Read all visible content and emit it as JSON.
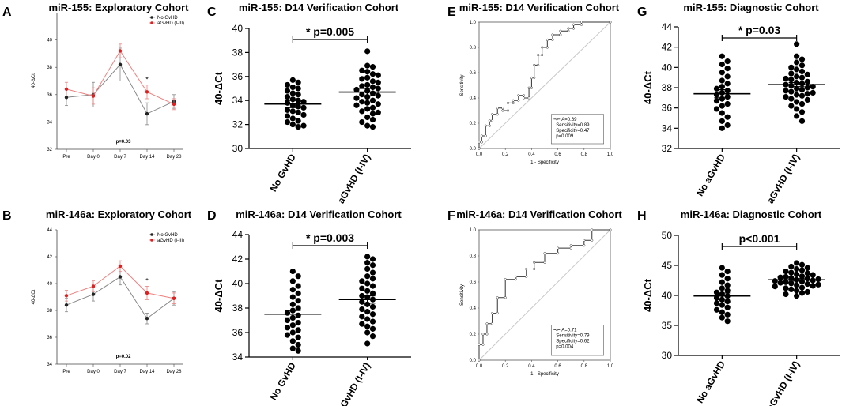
{
  "colors": {
    "black": "#222222",
    "red": "#e02020",
    "gray": "#999999",
    "diag": "#c8c8c8"
  },
  "chart_data": [
    {
      "panel": "A",
      "type": "line",
      "title": "miR-155: Exploratory Cohort",
      "ylabel": "40-ΔCt",
      "ylim": [
        32,
        42
      ],
      "yticks": [
        32,
        34,
        36,
        38,
        40
      ],
      "categories": [
        "Pre",
        "Day 0",
        "Day 7",
        "Day 14",
        "Day 28"
      ],
      "series": [
        {
          "name": "No GvHD",
          "color": "#222222",
          "values": [
            35.8,
            36.0,
            38.2,
            34.6,
            35.5
          ],
          "errors": [
            0.6,
            0.9,
            1.2,
            0.8,
            0.5
          ]
        },
        {
          "name": "aGvHD (I-III)",
          "color": "#e02020",
          "values": [
            36.4,
            35.9,
            39.2,
            36.2,
            35.3
          ],
          "errors": [
            0.5,
            0.6,
            0.5,
            0.5,
            0.4
          ]
        }
      ],
      "star": "*",
      "star_category": "Day 14",
      "pvalue": "p=0.03"
    },
    {
      "panel": "B",
      "type": "line",
      "title": "miR-146a: Exploratory Cohort",
      "ylabel": "40-ΔCt",
      "ylim": [
        34,
        44
      ],
      "yticks": [
        34,
        36,
        38,
        40,
        42,
        44
      ],
      "categories": [
        "Pre",
        "Day 0",
        "Day 7",
        "Day 14",
        "Day 28"
      ],
      "series": [
        {
          "name": "No GvHD",
          "color": "#222222",
          "values": [
            38.4,
            39.2,
            40.5,
            37.4,
            38.9
          ],
          "errors": [
            0.5,
            0.5,
            0.6,
            0.4,
            0.5
          ]
        },
        {
          "name": "aGvHD (I-III)",
          "color": "#e02020",
          "values": [
            39.1,
            39.8,
            41.3,
            39.3,
            38.9
          ],
          "errors": [
            0.4,
            0.4,
            0.4,
            0.5,
            0.4
          ]
        }
      ],
      "star": "*",
      "star_category": "Day 14",
      "pvalue": "p=0.02"
    },
    {
      "panel": "C",
      "type": "scatter",
      "title": "miR-155: D14 Verification Cohort",
      "ylabel": "40-ΔCt",
      "ylim": [
        30,
        40
      ],
      "yticks": [
        30,
        32,
        34,
        36,
        38,
        40
      ],
      "categories": [
        "No GvHD",
        "aGvHD (I-IV)"
      ],
      "groups": [
        {
          "name": "No GvHD",
          "mean": 33.7,
          "sem": 0.3,
          "values": [
            35.7,
            35.5,
            35.3,
            35.1,
            35.0,
            34.8,
            34.6,
            34.5,
            34.3,
            34.1,
            34.0,
            33.9,
            33.8,
            33.6,
            33.5,
            33.4,
            33.2,
            33.1,
            33.0,
            32.8,
            32.7,
            32.5,
            32.3,
            32.2,
            32.0,
            31.9,
            31.8
          ]
        },
        {
          "name": "aGvHD (I-IV)",
          "mean": 34.7,
          "sem": 0.3,
          "values": [
            38.1,
            36.9,
            36.8,
            36.5,
            36.4,
            36.2,
            36.1,
            35.9,
            35.8,
            35.6,
            35.5,
            35.3,
            35.2,
            35.1,
            35.0,
            34.9,
            34.8,
            34.6,
            34.5,
            34.4,
            34.3,
            34.2,
            34.0,
            33.9,
            33.8,
            33.7,
            33.6,
            33.4,
            33.3,
            33.1,
            33.0,
            32.9,
            32.6,
            32.4,
            32.2,
            31.9,
            31.8
          ]
        }
      ],
      "significance": "* p=0.005"
    },
    {
      "panel": "D",
      "type": "scatter",
      "title": "miR-146a: D14 Verification Cohort",
      "ylabel": "40-ΔCt",
      "ylim": [
        34,
        44
      ],
      "yticks": [
        34,
        36,
        38,
        40,
        42,
        44
      ],
      "categories": [
        "No GvHD",
        "aGvHD (I-IV)"
      ],
      "groups": [
        {
          "name": "No GvHD",
          "mean": 37.5,
          "sem": 0.3,
          "values": [
            41.0,
            40.6,
            40.2,
            39.8,
            39.5,
            39.2,
            38.9,
            38.6,
            38.3,
            38.0,
            37.8,
            37.6,
            37.4,
            37.2,
            37.0,
            36.8,
            36.6,
            36.4,
            36.2,
            36.0,
            35.8,
            35.6,
            35.3,
            35.0,
            34.7,
            34.5
          ]
        },
        {
          "name": "aGvHD (I-IV)",
          "mean": 38.7,
          "sem": 0.3,
          "values": [
            42.2,
            42.0,
            41.7,
            41.5,
            41.2,
            40.9,
            40.6,
            40.4,
            40.2,
            40.0,
            39.8,
            39.6,
            39.4,
            39.2,
            39.0,
            38.9,
            38.7,
            38.5,
            38.3,
            38.1,
            37.9,
            37.7,
            37.5,
            37.3,
            37.1,
            36.9,
            36.7,
            36.5,
            36.3,
            36.0,
            35.7,
            35.1
          ]
        }
      ],
      "significance": "* p=0.003"
    },
    {
      "panel": "E",
      "type": "line",
      "title": "miR-155: D14 Verification Cohort",
      "xlabel": "1 - Specificity",
      "ylabel": "Sensitivity",
      "xlim": [
        0,
        1
      ],
      "ylim": [
        0,
        1
      ],
      "ticks": [
        "0.0",
        "0.2",
        "0.4",
        "0.6",
        "0.8",
        "1.0"
      ],
      "x": [
        0.0,
        0.0,
        0.02,
        0.02,
        0.05,
        0.05,
        0.08,
        0.08,
        0.1,
        0.1,
        0.14,
        0.14,
        0.18,
        0.18,
        0.22,
        0.22,
        0.26,
        0.26,
        0.3,
        0.3,
        0.34,
        0.34,
        0.38,
        0.38,
        0.4,
        0.4,
        0.42,
        0.42,
        0.45,
        0.45,
        0.48,
        0.48,
        0.52,
        0.52,
        0.56,
        0.56,
        0.62,
        0.62,
        0.68,
        0.68,
        0.72,
        0.72,
        0.78,
        0.78,
        1.0
      ],
      "y": [
        0.0,
        0.05,
        0.05,
        0.1,
        0.1,
        0.18,
        0.18,
        0.22,
        0.22,
        0.27,
        0.27,
        0.32,
        0.32,
        0.3,
        0.3,
        0.36,
        0.36,
        0.38,
        0.38,
        0.42,
        0.42,
        0.4,
        0.4,
        0.48,
        0.48,
        0.56,
        0.56,
        0.66,
        0.66,
        0.74,
        0.74,
        0.8,
        0.8,
        0.86,
        0.86,
        0.9,
        0.9,
        0.93,
        0.93,
        0.95,
        0.95,
        0.98,
        0.98,
        1.0,
        1.0
      ],
      "legend": [
        "A=0.69",
        "Sensitivity=0.89",
        "Specificity=0.47",
        "p=0.009"
      ]
    },
    {
      "panel": "F",
      "type": "line",
      "title": "miR-146a: D14 Verification Cohort",
      "xlabel": "1 - Specificity",
      "ylabel": "Sensitivity",
      "xlim": [
        0,
        1
      ],
      "ylim": [
        0,
        1
      ],
      "ticks": [
        "0.0",
        "0.2",
        "0.4",
        "0.6",
        "0.8",
        "1.0"
      ],
      "x": [
        0.0,
        0.0,
        0.03,
        0.03,
        0.06,
        0.06,
        0.1,
        0.1,
        0.14,
        0.14,
        0.2,
        0.2,
        0.28,
        0.28,
        0.36,
        0.36,
        0.42,
        0.42,
        0.5,
        0.5,
        0.6,
        0.6,
        0.7,
        0.7,
        0.8,
        0.8,
        0.86,
        0.86,
        1.0
      ],
      "y": [
        0.0,
        0.12,
        0.12,
        0.2,
        0.2,
        0.28,
        0.28,
        0.36,
        0.36,
        0.48,
        0.48,
        0.62,
        0.62,
        0.64,
        0.64,
        0.7,
        0.7,
        0.75,
        0.75,
        0.82,
        0.82,
        0.86,
        0.86,
        0.88,
        0.88,
        0.92,
        0.92,
        1.0,
        1.0
      ],
      "legend": [
        "A=0.71",
        "Sensitivity=0.79",
        "Specificity=0.62",
        "p=0.004"
      ]
    },
    {
      "panel": "G",
      "type": "scatter",
      "title": "miR-155: Diagnostic Cohort",
      "ylabel": "40-ΔCt",
      "ylim": [
        32,
        44
      ],
      "yticks": [
        32,
        34,
        36,
        38,
        40,
        42,
        44
      ],
      "categories": [
        "No aGvHD",
        "aGvHD (I-IV)"
      ],
      "groups": [
        {
          "name": "No aGvHD",
          "mean": 37.4,
          "sem": 0.4,
          "values": [
            41.1,
            40.6,
            40.3,
            39.9,
            39.5,
            39.1,
            38.7,
            38.4,
            38.1,
            37.9,
            37.7,
            37.5,
            37.3,
            37.1,
            36.9,
            36.7,
            36.4,
            36.2,
            35.9,
            35.5,
            35.1,
            34.7,
            34.3,
            34.0
          ]
        },
        {
          "name": "aGvHD (I-IV)",
          "mean": 38.3,
          "sem": 0.2,
          "values": [
            42.3,
            41.1,
            40.8,
            40.5,
            40.2,
            40.0,
            39.8,
            39.6,
            39.4,
            39.3,
            39.1,
            39.0,
            38.9,
            38.8,
            38.6,
            38.5,
            38.4,
            38.3,
            38.2,
            38.1,
            38.0,
            37.9,
            37.8,
            37.7,
            37.6,
            37.5,
            37.4,
            37.3,
            37.2,
            37.1,
            36.9,
            36.8,
            36.6,
            36.4,
            36.2,
            35.9,
            35.6,
            35.2,
            34.7
          ]
        }
      ],
      "significance": "* p=0.03"
    },
    {
      "panel": "H",
      "type": "scatter",
      "title": "miR-146a: Diagnostic Cohort",
      "ylabel": "40-ΔCt",
      "ylim": [
        30,
        50
      ],
      "yticks": [
        30,
        35,
        40,
        45,
        50
      ],
      "categories": [
        "No aGvHD",
        "aGvHD (I-IV)"
      ],
      "groups": [
        {
          "name": "No aGvHD",
          "mean": 39.9,
          "sem": 0.5,
          "values": [
            44.6,
            44.0,
            43.4,
            42.8,
            42.2,
            41.7,
            41.2,
            40.8,
            40.5,
            40.2,
            39.9,
            39.6,
            39.3,
            39.0,
            38.7,
            38.4,
            38.0,
            37.6,
            37.2,
            36.8,
            36.3,
            35.7
          ]
        },
        {
          "name": "aGvHD (I-IV)",
          "mean": 42.6,
          "sem": 0.2,
          "values": [
            45.4,
            45.1,
            44.8,
            44.6,
            44.4,
            44.2,
            44.0,
            43.8,
            43.7,
            43.5,
            43.4,
            43.2,
            43.1,
            43.0,
            42.9,
            42.8,
            42.7,
            42.6,
            42.5,
            42.4,
            42.3,
            42.2,
            42.1,
            42.0,
            41.9,
            41.8,
            41.7,
            41.6,
            41.5,
            41.3,
            41.2,
            41.0,
            40.8,
            40.6,
            40.4,
            40.2,
            39.9
          ]
        }
      ],
      "significance": "p<0.001"
    }
  ]
}
